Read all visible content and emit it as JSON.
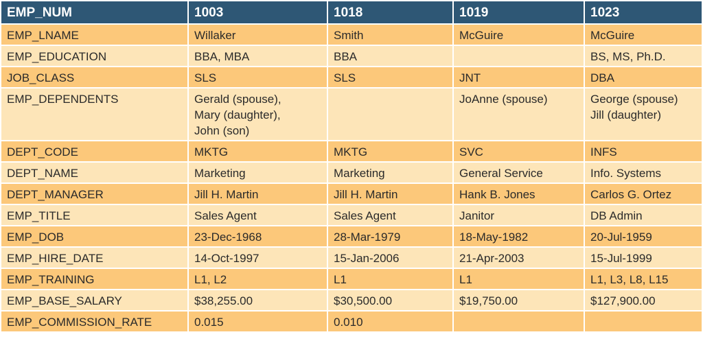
{
  "table": {
    "headers": [
      "EMP_NUM",
      "1003",
      "1018",
      "1019",
      "1023"
    ],
    "rows": [
      {
        "label": "EMP_LNAME",
        "cells": [
          "Willaker",
          "Smith",
          "McGuire",
          "McGuire"
        ]
      },
      {
        "label": "EMP_EDUCATION",
        "cells": [
          "BBA, MBA",
          "BBA",
          "",
          "BS, MS, Ph.D."
        ]
      },
      {
        "label": "JOB_CLASS",
        "cells": [
          "SLS",
          "SLS",
          "JNT",
          "DBA"
        ]
      },
      {
        "label": "EMP_DEPENDENTS",
        "cells": [
          "Gerald (spouse),\nMary (daughter),\nJohn (son)",
          "",
          "JoAnne (spouse)",
          "George (spouse)\nJill (daughter)"
        ]
      },
      {
        "label": "DEPT_CODE",
        "cells": [
          "MKTG",
          "MKTG",
          "SVC",
          "INFS"
        ]
      },
      {
        "label": "DEPT_NAME",
        "cells": [
          "Marketing",
          "Marketing",
          "General Service",
          "Info. Systems"
        ]
      },
      {
        "label": "DEPT_MANAGER",
        "cells": [
          "Jill H. Martin",
          "Jill H. Martin",
          "Hank B. Jones",
          "Carlos G. Ortez"
        ]
      },
      {
        "label": "EMP_TITLE",
        "cells": [
          "Sales Agent",
          "Sales Agent",
          "Janitor",
          "DB Admin"
        ]
      },
      {
        "label": "EMP_DOB",
        "cells": [
          "23-Dec-1968",
          "28-Mar-1979",
          "18-May-1982",
          "20-Jul-1959"
        ]
      },
      {
        "label": "EMP_HIRE_DATE",
        "cells": [
          "14-Oct-1997",
          "15-Jan-2006",
          "21-Apr-2003",
          "15-Jul-1999"
        ]
      },
      {
        "label": "EMP_TRAINING",
        "cells": [
          "L1, L2",
          "L1",
          "L1",
          "L1, L3, L8, L15"
        ]
      },
      {
        "label": "EMP_BASE_SALARY",
        "cells": [
          "$38,255.00",
          "$30,500.00",
          "$19,750.00",
          "$127,900.00"
        ]
      },
      {
        "label": "EMP_COMMISSION_RATE",
        "cells": [
          "0.015",
          "0.010",
          "",
          ""
        ]
      }
    ]
  },
  "colors": {
    "header_bg": "#2e5775",
    "row_dark": "#fcc87a",
    "row_light": "#fde5b8",
    "grid": "#ffffff"
  }
}
